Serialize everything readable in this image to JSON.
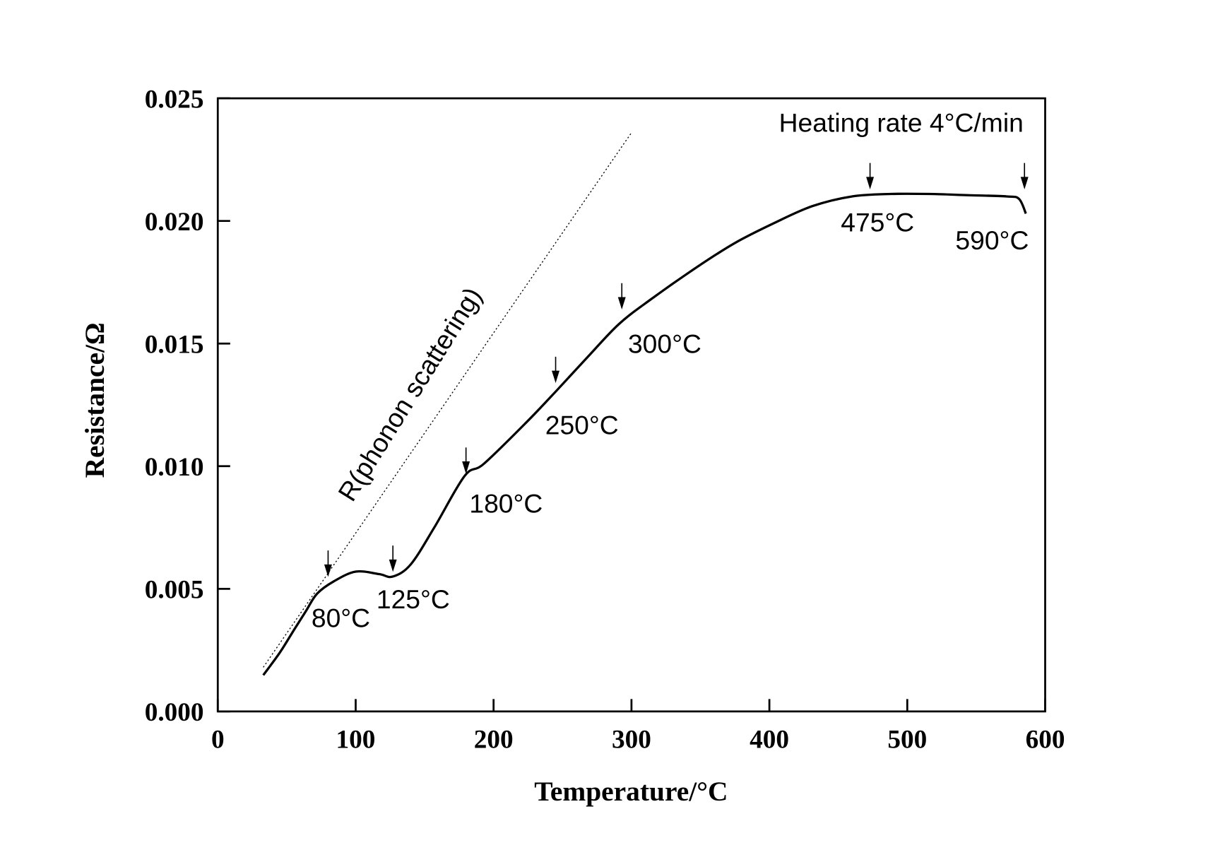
{
  "chart_data": {
    "type": "line",
    "title": "",
    "xlabel": "Temperature/°C",
    "ylabel": "Resistance/Ω",
    "xlim": [
      0,
      600
    ],
    "ylim": [
      0,
      0.025
    ],
    "xticks": [
      "0",
      "100",
      "200",
      "300",
      "400",
      "500",
      "600"
    ],
    "yticks": [
      "0.000",
      "0.005",
      "0.010",
      "0.015",
      "0.020",
      "0.025"
    ],
    "grid": false,
    "legend": "none",
    "series": [
      {
        "style": "solid",
        "color": "#000000",
        "x": [
          33,
          45,
          55,
          64,
          72,
          84,
          100,
          117,
          127,
          140,
          157,
          179,
          193,
          224,
          246,
          269,
          291,
          314,
          347,
          375,
          403,
          431,
          460,
          488,
          516,
          544,
          572,
          581,
          586
        ],
        "y": [
          0.00148,
          0.0024,
          0.0033,
          0.0041,
          0.0048,
          0.0053,
          0.0057,
          0.0056,
          0.0055,
          0.006,
          0.0075,
          0.0096,
          0.0101,
          0.0118,
          0.0131,
          0.0145,
          0.0158,
          0.0168,
          0.0181,
          0.0191,
          0.0199,
          0.0206,
          0.021,
          0.0211,
          0.0211,
          0.02105,
          0.021,
          0.0209,
          0.0203
        ]
      },
      {
        "name": "R(phonon scattering)",
        "style": "dotted",
        "color": "#000000",
        "x": [
          33,
          300
        ],
        "y": [
          0.0018,
          0.0236
        ]
      }
    ],
    "annotations": [
      {
        "text": "Heating rate 4°C/min"
      },
      {
        "text": "80°C",
        "arrow_x": 80,
        "arrow_y": 0.0053
      },
      {
        "text": "125°C",
        "arrow_x": 127,
        "arrow_y": 0.0055
      },
      {
        "text": "180°C",
        "arrow_x": 180,
        "arrow_y": 0.0095
      },
      {
        "text": "250°C",
        "arrow_x": 245,
        "arrow_y": 0.0132
      },
      {
        "text": "300°C",
        "arrow_x": 293,
        "arrow_y": 0.0162
      },
      {
        "text": "475°C",
        "arrow_x": 473,
        "arrow_y": 0.0211
      },
      {
        "text": "590°C",
        "arrow_x": 585,
        "arrow_y": 0.0211
      }
    ],
    "line_label": "R(phonon scattering)"
  }
}
